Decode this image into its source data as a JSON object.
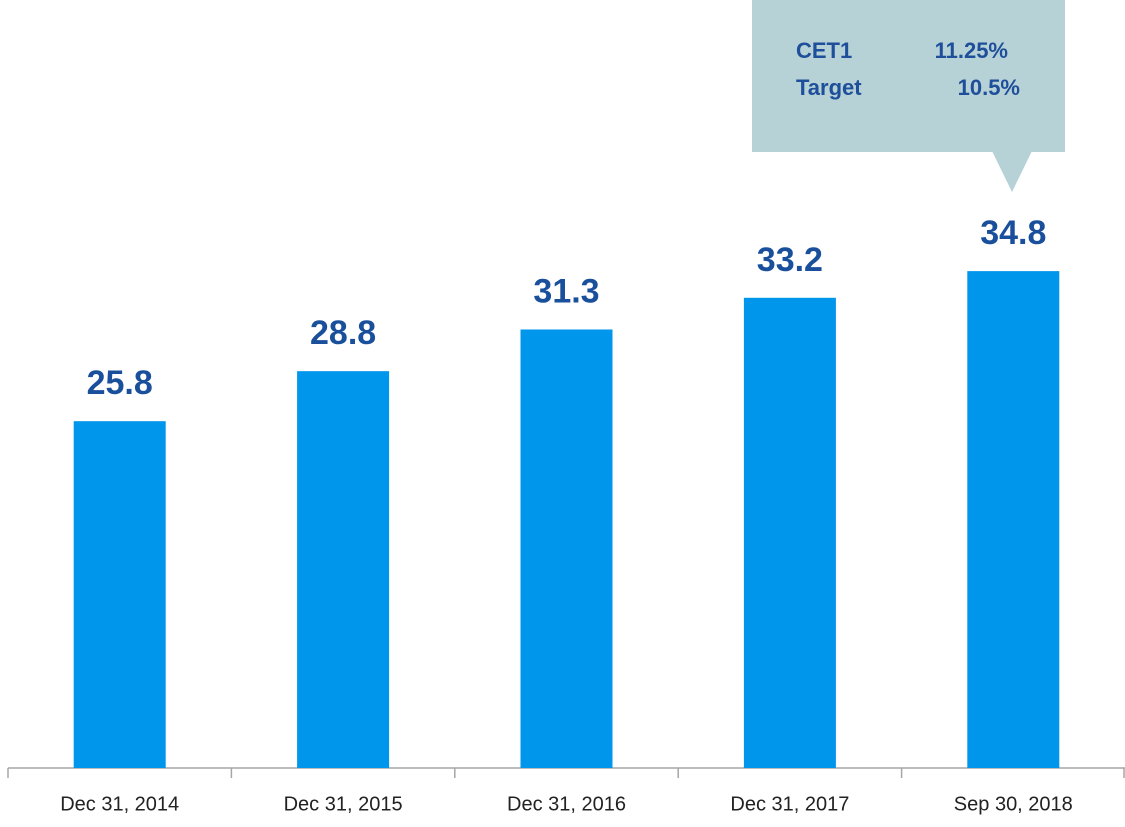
{
  "chart_data": {
    "type": "bar",
    "categories": [
      "Dec 31, 2014",
      "Dec 31, 2015",
      "Dec 31, 2016",
      "Dec 31, 2017",
      "Sep 30, 2018"
    ],
    "values": [
      25.8,
      28.8,
      31.3,
      33.2,
      34.8
    ],
    "color": "#0096ec",
    "ylim": [
      5,
      51
    ],
    "annotation": {
      "rows": [
        [
          "CET1",
          "11.25%"
        ],
        [
          "Target",
          "10.5%"
        ]
      ],
      "color": "#b6d2d6"
    }
  }
}
